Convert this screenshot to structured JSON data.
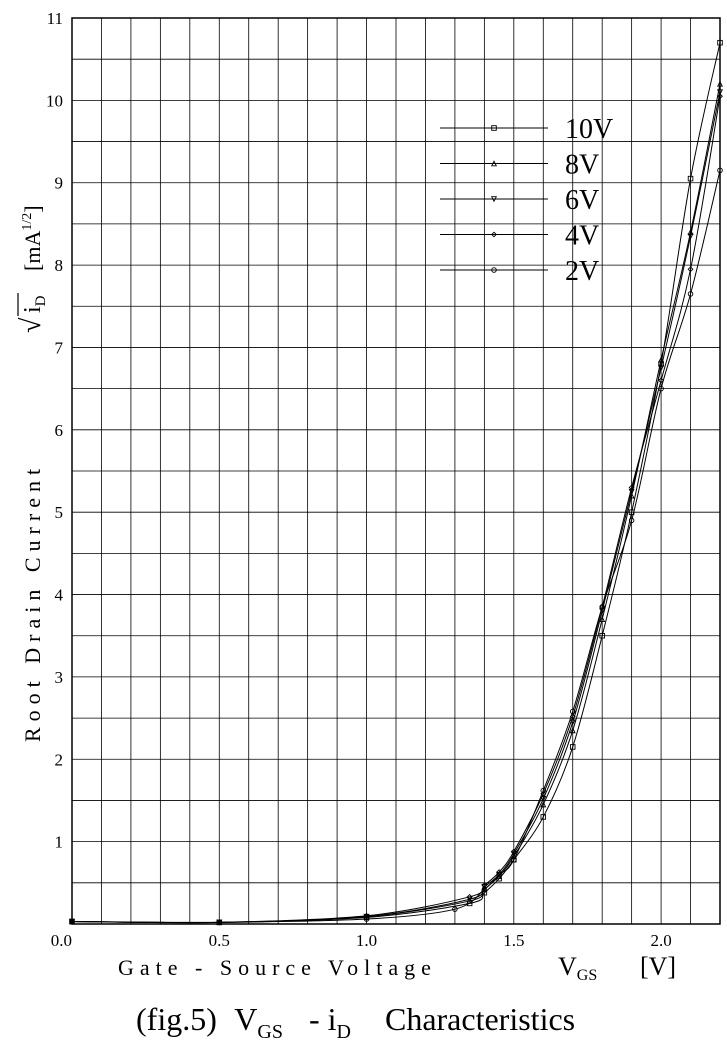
{
  "chart_data": {
    "type": "line",
    "caption": {
      "prefix": "(fig.5)",
      "v": "V",
      "v_sub": "GS",
      "dash": "- i",
      "i_sub": "D",
      "suffix": "Characteristics"
    },
    "xlabel": {
      "text": "Gate - Source Voltage",
      "sym": "V",
      "sub": "GS",
      "unit": "[V]"
    },
    "ylabel": {
      "text": "Root Drain Current",
      "sym_i": "i",
      "sub": "D",
      "unit_open": "[mA",
      "unit_sup": "1/2",
      "unit_close": "]"
    },
    "x_ticks": [
      "0.0",
      "0.5",
      "1.0",
      "1.5",
      "2.0"
    ],
    "x_tick_values": [
      0.0,
      0.5,
      1.0,
      1.5,
      2.0
    ],
    "y_ticks": [
      "0.0",
      "1",
      "2",
      "3",
      "4",
      "5",
      "6",
      "7",
      "8",
      "9",
      "10",
      "11"
    ],
    "y_tick_values": [
      0,
      1,
      2,
      3,
      4,
      5,
      6,
      7,
      8,
      9,
      10,
      11
    ],
    "xlim": [
      0.0,
      2.2
    ],
    "ylim": [
      0,
      11
    ],
    "grid": true,
    "grid_x_step": 0.1,
    "grid_y_step": 0.5,
    "legend_position": "top-right",
    "series": [
      {
        "name": "10V",
        "marker": "square",
        "x": [
          0.0,
          0.5,
          1.0,
          1.35,
          1.4,
          1.45,
          1.5,
          1.6,
          1.7,
          1.8,
          1.9,
          2.0,
          2.1,
          2.2
        ],
        "y": [
          0.03,
          0.02,
          0.08,
          0.25,
          0.38,
          0.55,
          0.78,
          1.3,
          2.15,
          3.5,
          5.0,
          6.8,
          9.05,
          10.7
        ]
      },
      {
        "name": "8V",
        "marker": "triangle-up",
        "x": [
          0.0,
          0.5,
          1.0,
          1.35,
          1.4,
          1.45,
          1.5,
          1.6,
          1.7,
          1.8,
          1.9,
          2.0,
          2.1,
          2.2
        ],
        "y": [
          0.03,
          0.02,
          0.09,
          0.28,
          0.42,
          0.58,
          0.82,
          1.45,
          2.35,
          3.7,
          5.2,
          6.85,
          8.4,
          10.2
        ]
      },
      {
        "name": "6V",
        "marker": "triangle-down",
        "x": [
          0.0,
          0.5,
          1.0,
          1.35,
          1.4,
          1.45,
          1.5,
          1.6,
          1.7,
          1.8,
          1.9,
          2.0,
          2.1,
          2.2
        ],
        "y": [
          0.03,
          0.02,
          0.09,
          0.3,
          0.45,
          0.6,
          0.85,
          1.52,
          2.45,
          3.8,
          5.25,
          6.75,
          8.35,
          10.1
        ]
      },
      {
        "name": "4V",
        "marker": "diamond",
        "x": [
          0.0,
          0.5,
          1.0,
          1.35,
          1.4,
          1.45,
          1.5,
          1.6,
          1.7,
          1.8,
          1.9,
          2.0,
          2.1,
          2.2
        ],
        "y": [
          0.03,
          0.02,
          0.1,
          0.33,
          0.47,
          0.63,
          0.88,
          1.58,
          2.52,
          3.85,
          5.3,
          6.6,
          7.95,
          10.05
        ]
      },
      {
        "name": "2V",
        "marker": "circle",
        "x": [
          0.0,
          0.5,
          1.0,
          1.3,
          1.4,
          1.45,
          1.5,
          1.6,
          1.7,
          1.8,
          1.9,
          2.0,
          2.1,
          2.2
        ],
        "y": [
          0.03,
          0.02,
          0.06,
          0.18,
          0.42,
          0.6,
          0.78,
          1.62,
          2.58,
          3.85,
          4.9,
          6.5,
          7.65,
          9.15
        ]
      }
    ]
  }
}
